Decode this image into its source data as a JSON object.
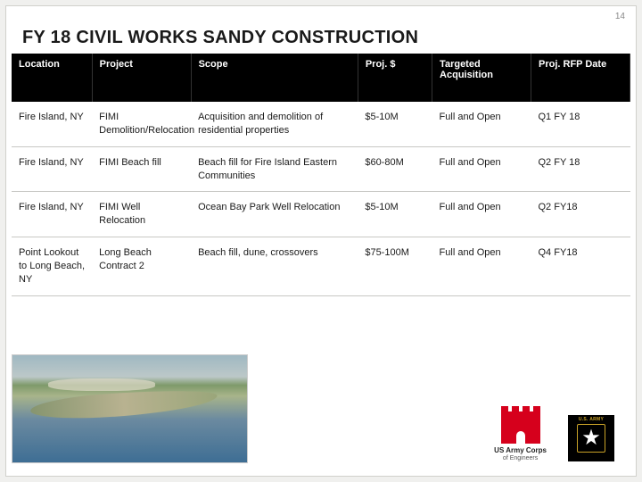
{
  "page_number": "14",
  "title": "FY 18 CIVIL WORKS SANDY CONSTRUCTION",
  "table": {
    "columns": {
      "location": "Location",
      "project": "Project",
      "scope": "Scope",
      "cost": "Proj. $",
      "acquisition": "Targeted Acquisition",
      "rfp": "Proj. RFP Date"
    },
    "rows": [
      {
        "location": "Fire Island, NY",
        "project": "FIMI Demolition/Relocation",
        "scope": "Acquisition and demolition of residential properties",
        "cost": "$5-10M",
        "acquisition": "Full and Open",
        "rfp": "Q1 FY 18"
      },
      {
        "location": "Fire Island, NY",
        "project": "FIMI Beach fill",
        "scope": "Beach fill for Fire Island Eastern Communities",
        "cost": "$60-80M",
        "acquisition": "Full and Open",
        "rfp": "Q2 FY 18"
      },
      {
        "location": "Fire Island, NY",
        "project": "FIMI Well Relocation",
        "scope": "Ocean Bay Park Well Relocation",
        "cost": "$5-10M",
        "acquisition": "Full and Open",
        "rfp": "Q2 FY18"
      },
      {
        "location": "Point Lookout to Long Beach, NY",
        "project": "Long Beach Contract 2",
        "scope": "Beach fill, dune, crossovers",
        "cost": "$75-100M",
        "acquisition": "Full and Open",
        "rfp": "Q4 FY18"
      }
    ]
  },
  "logos": {
    "corps_line1": "US Army Corps",
    "corps_line2": "of Engineers",
    "army_label": "U.S. ARMY"
  },
  "colors": {
    "header_bg": "#000000",
    "header_text": "#ffffff",
    "row_border": "#c8c8c4",
    "corps_red": "#d6001c",
    "army_gold": "#c9a227"
  }
}
